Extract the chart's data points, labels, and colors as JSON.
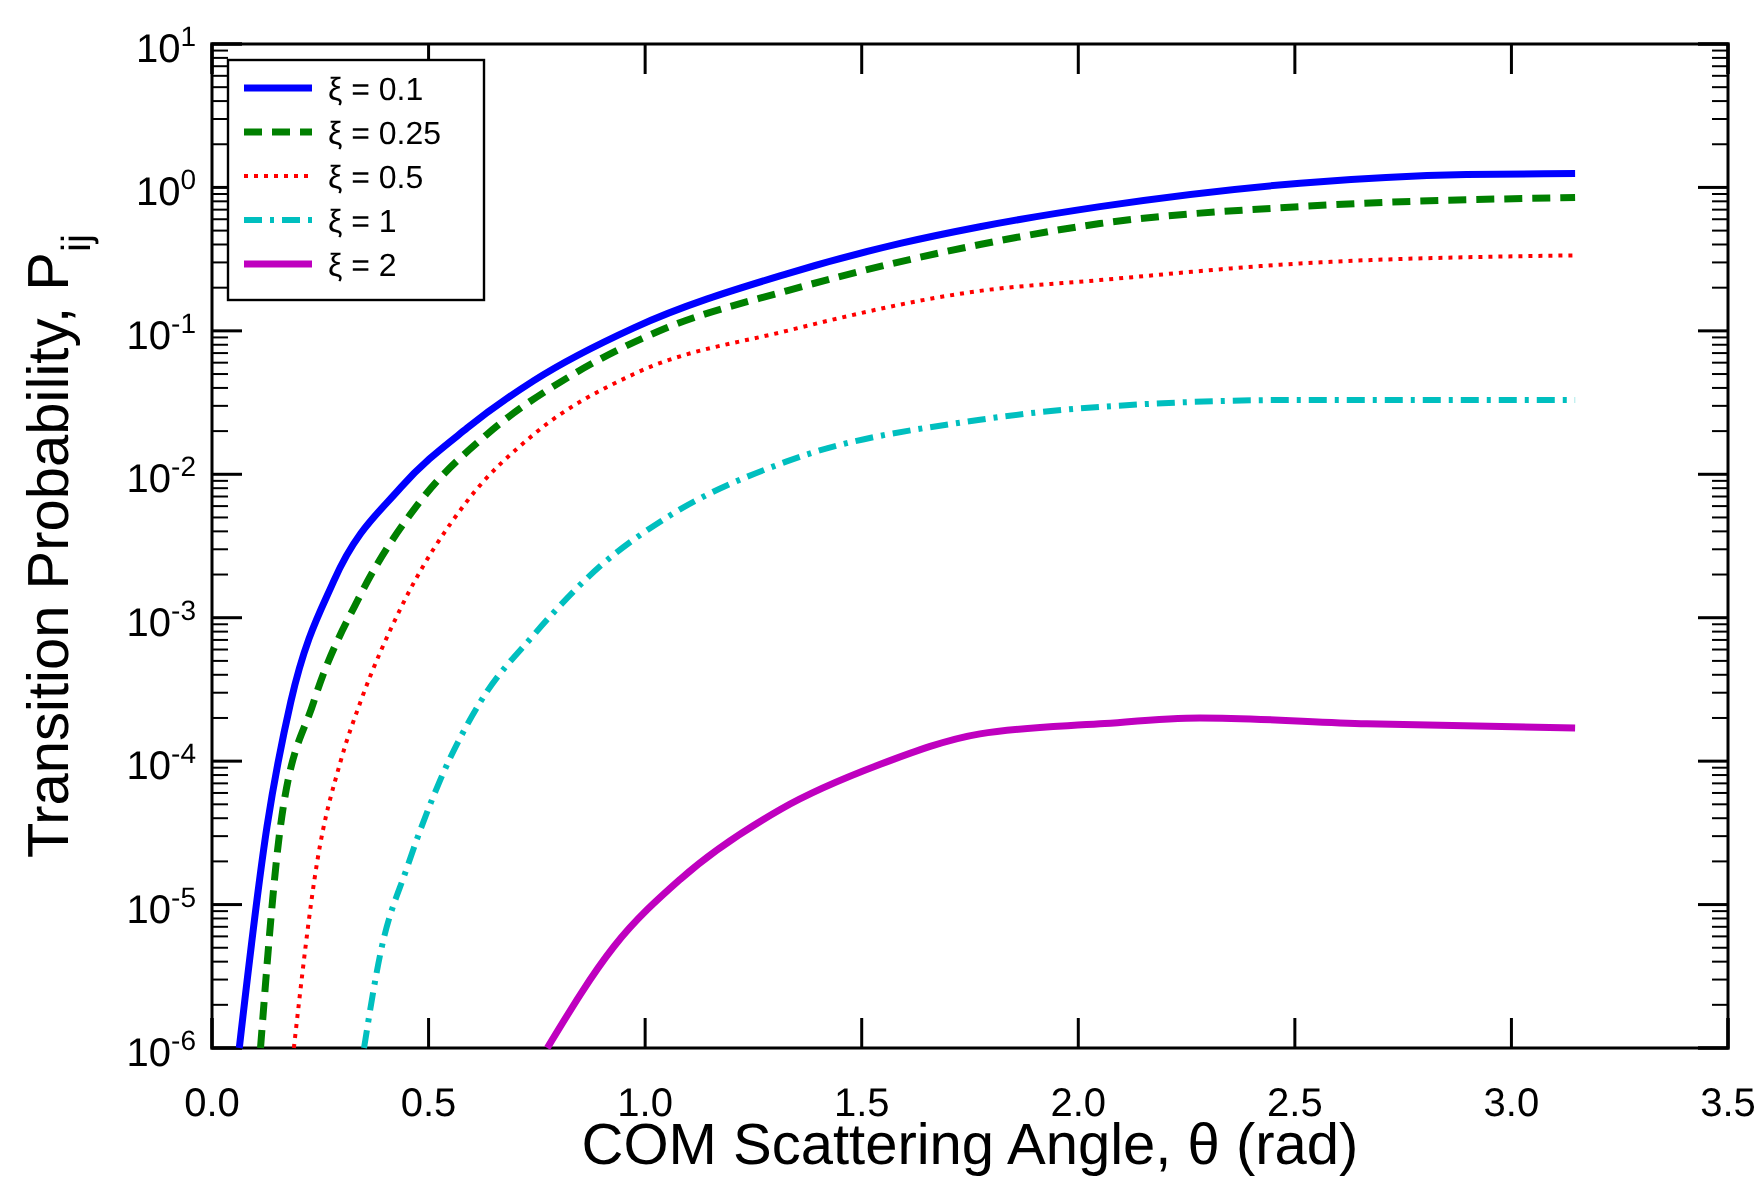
{
  "chart_data": {
    "type": "line",
    "xlabel": "COM Scattering Angle, θ (rad)",
    "ylabel": "Transition Probability, P$_{ij}$",
    "log": "y",
    "grid": false,
    "legend": "top left",
    "xlim": [
      0,
      3.5
    ],
    "ylim": [
      1e-06,
      10
    ],
    "xticks": [
      {
        "value": 0,
        "label": "0.0"
      },
      {
        "value": 0.5,
        "label": "0.5"
      },
      {
        "value": 1,
        "label": "1.0"
      },
      {
        "value": 1.5,
        "label": "1.5"
      },
      {
        "value": 2,
        "label": "2.0"
      },
      {
        "value": 2.5,
        "label": "2.5"
      },
      {
        "value": 3,
        "label": "3.0"
      },
      {
        "value": 3.5,
        "label": "3.5"
      }
    ],
    "yticks": [
      {
        "value": 1e-06,
        "label": "10$^{-6}$"
      },
      {
        "value": 1e-05,
        "label": "10$^{-5}$"
      },
      {
        "value": 0.0001,
        "label": "10$^{-4}$"
      },
      {
        "value": 0.001,
        "label": "10$^{-3}$"
      },
      {
        "value": 0.01,
        "label": "10$^{-2}$"
      },
      {
        "value": 0.1,
        "label": "10$^{-1}$"
      },
      {
        "value": 1,
        "label": "10$^{0}$"
      },
      {
        "value": 10,
        "label": "10$^{1}$"
      }
    ],
    "series": [
      {
        "name": "ξ = 0.1",
        "color": "#0000ff",
        "line_style": "solid",
        "x": [
          0.063,
          0.127,
          0.182,
          0.281,
          0.436,
          0.589,
          0.743,
          0.974,
          1.327,
          1.589,
          1.773,
          2.05,
          2.512,
          2.896,
          3.147
        ],
        "values": [
          1e-06,
          3.5e-05,
          0.00026,
          0.0018,
          0.0081,
          0.021,
          0.045,
          0.105,
          0.25,
          0.407,
          0.532,
          0.735,
          1.07,
          1.23,
          1.25
        ]
      },
      {
        "name": "ξ = 0.25",
        "color": "#008000",
        "line_style": "dashed",
        "x": [
          0.112,
          0.158,
          0.235,
          0.343,
          0.481,
          0.635,
          0.835,
          1.05,
          1.327,
          1.773,
          2.05,
          2.512,
          3.147
        ],
        "values": [
          1e-06,
          3.5e-05,
          0.00026,
          0.00145,
          0.0065,
          0.019,
          0.05,
          0.105,
          0.19,
          0.4,
          0.56,
          0.735,
          0.85
        ]
      },
      {
        "name": "ξ = 0.5",
        "color": "#ff0000",
        "line_style": "dotted",
        "x": [
          0.189,
          0.243,
          0.297,
          0.343,
          0.436,
          0.589,
          0.743,
          0.974,
          1.327,
          1.773,
          2.05,
          2.512,
          3.147
        ],
        "values": [
          1e-06,
          2e-05,
          0.0001,
          0.00026,
          0.00117,
          0.0065,
          0.019,
          0.05,
          0.1,
          0.19,
          0.226,
          0.295,
          0.336
        ]
      },
      {
        "name": "ξ = 1",
        "color": "#00bfbf",
        "line_style": "dashdot",
        "x": [
          0.351,
          0.389,
          0.45,
          0.527,
          0.62,
          0.743,
          0.897,
          1.05,
          1.327,
          1.773,
          2.05,
          2.512,
          3.147
        ],
        "values": [
          1e-06,
          4.6e-06,
          1.8e-05,
          7.4e-05,
          0.00026,
          0.00076,
          0.0023,
          0.005,
          0.0123,
          0.024,
          0.0295,
          0.033,
          0.033
        ]
      },
      {
        "name": "ξ = 2",
        "color": "#bf00bf",
        "line_style": "solid",
        "x": [
          0.774,
          0.928,
          1.081,
          1.312,
          1.543,
          1.773,
          2.05,
          2.281,
          2.666,
          3.147
        ],
        "values": [
          1e-06,
          5.1e-06,
          1.5e-05,
          4.6e-05,
          9.5e-05,
          0.000155,
          0.000182,
          0.0002,
          0.000182,
          0.00017
        ]
      }
    ]
  }
}
